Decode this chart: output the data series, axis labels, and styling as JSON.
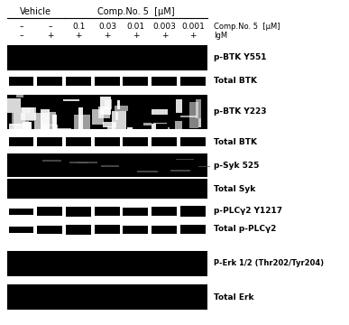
{
  "title_vehicle": "Vehicle",
  "title_comp": "Comp.No. 5  [μM]",
  "row_label_comp": "Comp.No. 5  [μM]",
  "row_label_igm": "IgM",
  "comp_signs": [
    "–",
    "–",
    "0.1",
    "0.03",
    "0.01",
    "0.003",
    "0.001"
  ],
  "igm_signs": [
    "–",
    "+",
    "+",
    "+",
    "+",
    "+",
    "+"
  ],
  "band_labels": [
    "p-BTK Y551",
    "Total BTK",
    "p-BTK Y223",
    "Total BTK",
    "p-Syk 525",
    "Total Syk",
    "p-PLCγ2 Y1217",
    "Total p-PLCγ2",
    "P-Erk 1/2 (Thr202/Tyr204)",
    "Total Erk"
  ],
  "bg_color": "#ffffff",
  "band_color": "#000000",
  "text_color": "#000000"
}
